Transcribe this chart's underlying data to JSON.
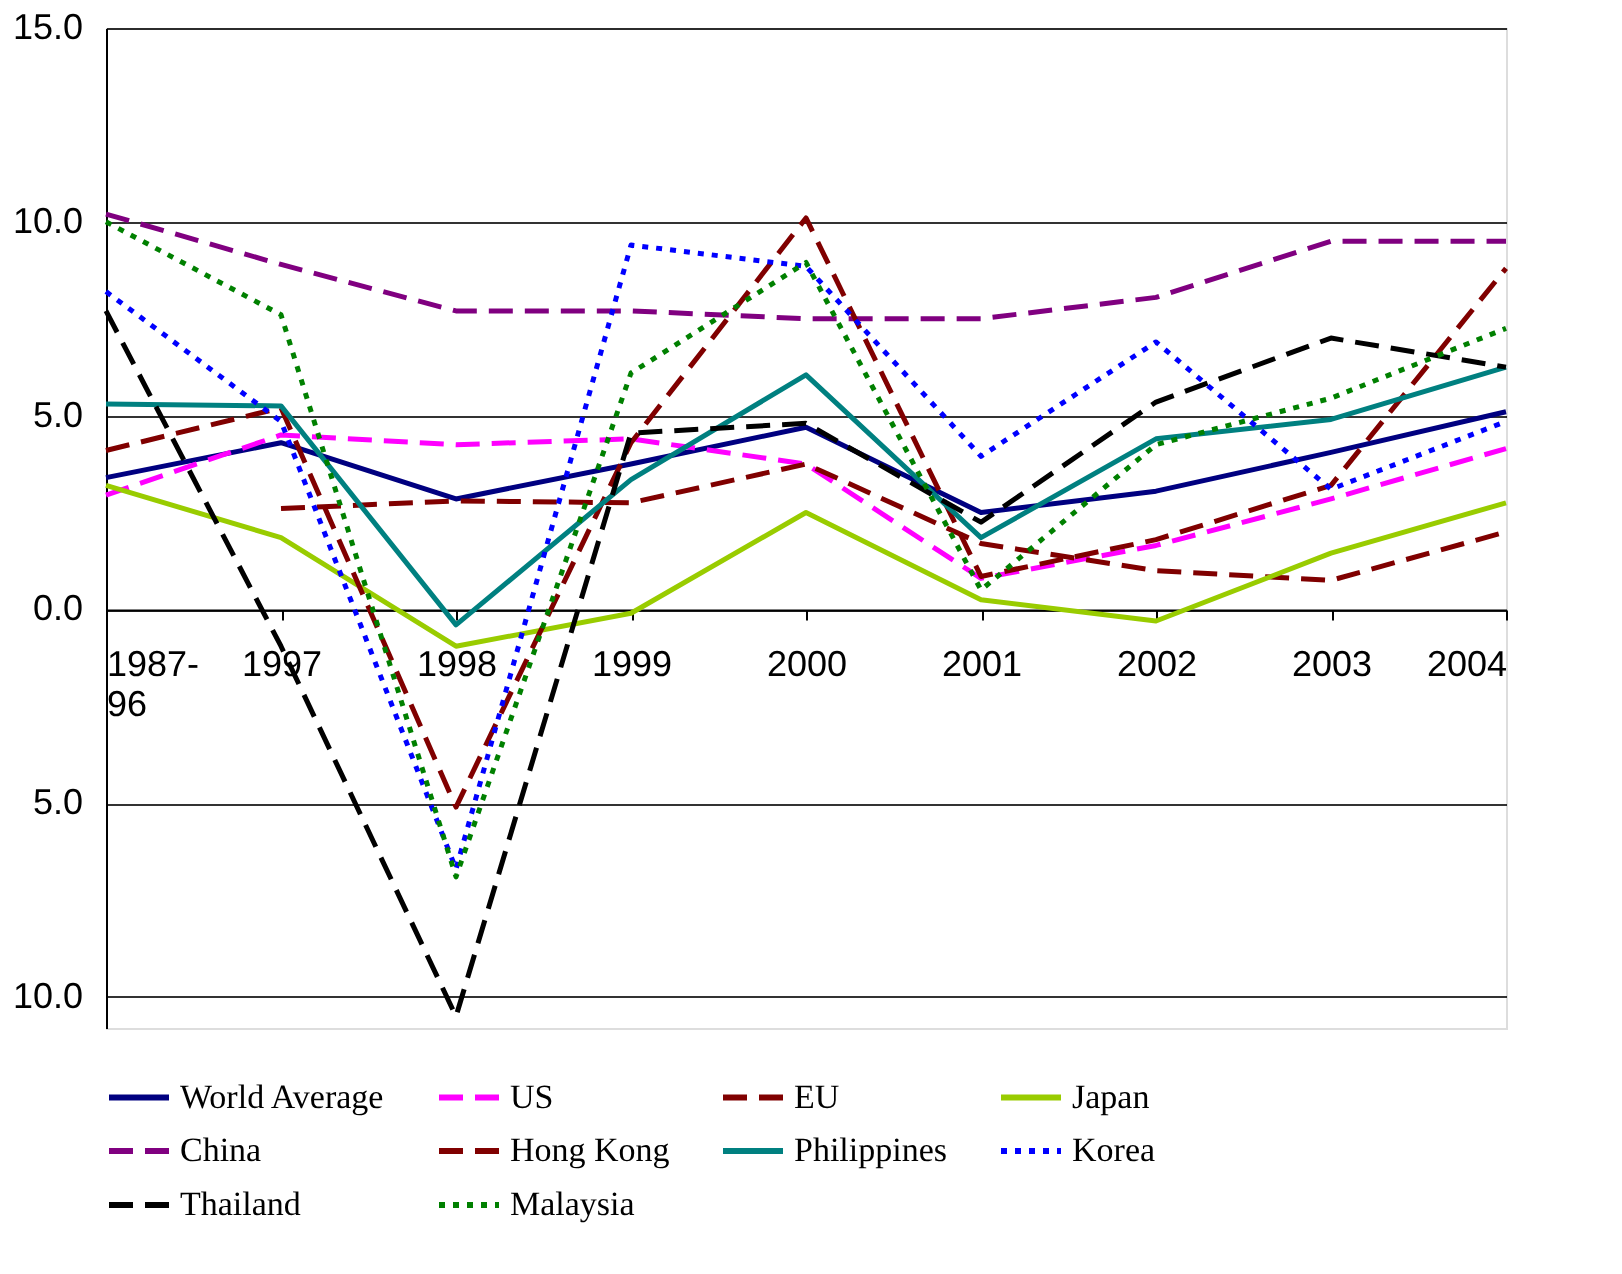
{
  "chart_data": {
    "type": "line",
    "categories": [
      "1987-96",
      "1997",
      "1998",
      "1999",
      "2000",
      "2001",
      "2002",
      "2003",
      "2004"
    ],
    "ylim": [
      -10.8,
      15
    ],
    "yticks": [
      {
        "value": 15,
        "label": "15.0"
      },
      {
        "value": 10,
        "label": "10.0"
      },
      {
        "value": 5,
        "label": "5.0"
      },
      {
        "value": 0,
        "label": "0.0"
      },
      {
        "value": -5,
        "label": "5.0"
      },
      {
        "value": -10,
        "label": "10.0"
      }
    ],
    "grid": "y",
    "legend": "bottom",
    "marker": "none",
    "series": [
      {
        "name": "World Average",
        "color": "#000080",
        "line_style": "solid",
        "values": [
          3.4,
          4.3,
          2.85,
          3.75,
          4.7,
          2.5,
          3.05,
          4.05,
          5.1
        ]
      },
      {
        "name": "US",
        "color": "#ff00ff",
        "line_style": "dashed",
        "values": [
          2.95,
          4.5,
          4.25,
          4.4,
          3.75,
          0.8,
          1.65,
          2.85,
          4.15
        ]
      },
      {
        "name": "EU",
        "color": "#800000",
        "line_style": "dashed",
        "values": [
          null,
          2.6,
          2.8,
          2.75,
          3.75,
          1.7,
          1.0,
          0.75,
          2.0
        ]
      },
      {
        "name": "Japan",
        "color": "#99cc00",
        "line_style": "solid",
        "values": [
          3.2,
          1.85,
          -0.95,
          -0.1,
          2.5,
          0.25,
          -0.3,
          1.45,
          2.75
        ]
      },
      {
        "name": "China",
        "color": "#800080",
        "line_style": "dashed",
        "values": [
          10.2,
          8.9,
          7.7,
          7.7,
          7.5,
          7.5,
          8.05,
          9.5,
          9.5
        ]
      },
      {
        "name": "Hong Kong",
        "color": "#800000",
        "line_style": "dashed",
        "values": [
          4.1,
          5.2,
          -5.1,
          4.3,
          10.1,
          0.85,
          1.8,
          3.2,
          8.8
        ]
      },
      {
        "name": "Philippines",
        "color": "#008080",
        "line_style": "solid",
        "values": [
          5.3,
          5.25,
          -0.4,
          3.35,
          6.05,
          1.85,
          4.4,
          4.9,
          6.25
        ]
      },
      {
        "name": "Korea",
        "color": "#0000ff",
        "line_style": "dotted",
        "values": [
          8.2,
          4.85,
          -6.7,
          9.4,
          8.85,
          3.95,
          6.9,
          3.1,
          4.85
        ]
      },
      {
        "name": "Thailand",
        "color": "#000000",
        "line_style": "dashed",
        "values": [
          7.7,
          -0.95,
          -10.5,
          4.55,
          4.8,
          2.25,
          5.35,
          7.0,
          6.25
        ]
      },
      {
        "name": "Malaysia",
        "color": "#008000",
        "line_style": "dotted",
        "values": [
          10.0,
          7.6,
          -6.9,
          6.1,
          8.95,
          0.5,
          4.25,
          5.45,
          7.25
        ]
      }
    ]
  }
}
